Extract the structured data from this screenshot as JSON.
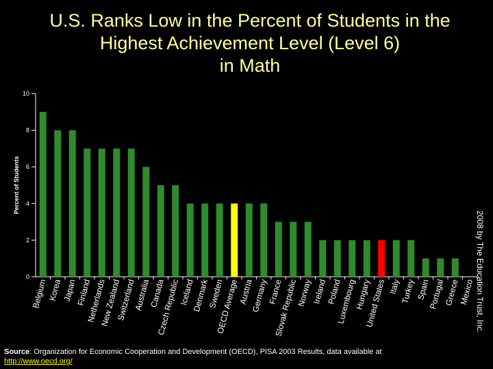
{
  "title_lines": [
    "U.S. Ranks Low in the Percent of Students in the",
    "Highest Achievement Level (Level 6)",
    "in Math"
  ],
  "copyright": "2008 by The Education Trust, Inc.",
  "source": {
    "label": "Source",
    "text": ": Organization for Economic Cooperation and Development (OECD), PISA 2003 Results, data available at",
    "link": "http://www.oecd.org/"
  },
  "colors": {
    "background": "#000000",
    "title": "#ffff99",
    "bar": "#2e8b2e",
    "average": "#ffff00",
    "highlight": "#ff0000"
  },
  "chart_data": {
    "type": "bar",
    "title": "U.S. Ranks Low in the Percent of Students in the Highest Achievement Level (Level 6) in Math",
    "xlabel": "",
    "ylabel": "Percent of Students",
    "ylim": [
      0,
      10
    ],
    "yticks": [
      0,
      2,
      4,
      6,
      8,
      10
    ],
    "grid": false,
    "categories": [
      "Belgium",
      "Korea",
      "Japan",
      "Finland",
      "Netherlands",
      "New Zealand",
      "Switzerland",
      "Australia",
      "Canada",
      "Czech Republic",
      "Iceland",
      "Denmark",
      "Sweden",
      "OECD Average",
      "Austria",
      "Germany",
      "France",
      "Slovak Republic",
      "Norway",
      "Ireland",
      "Poland",
      "Luxembourg",
      "Hungary",
      "United States",
      "Italy",
      "Turkey",
      "Spain",
      "Portugal",
      "Greece",
      "Mexico"
    ],
    "values": [
      9,
      8,
      8,
      7,
      7,
      7,
      7,
      6,
      5,
      5,
      4,
      4,
      4,
      4,
      4,
      4,
      3,
      3,
      3,
      2,
      2,
      2,
      2,
      2,
      2,
      2,
      1,
      1,
      1,
      0
    ],
    "average_category": "OECD Average",
    "highlight_category": "United States"
  }
}
